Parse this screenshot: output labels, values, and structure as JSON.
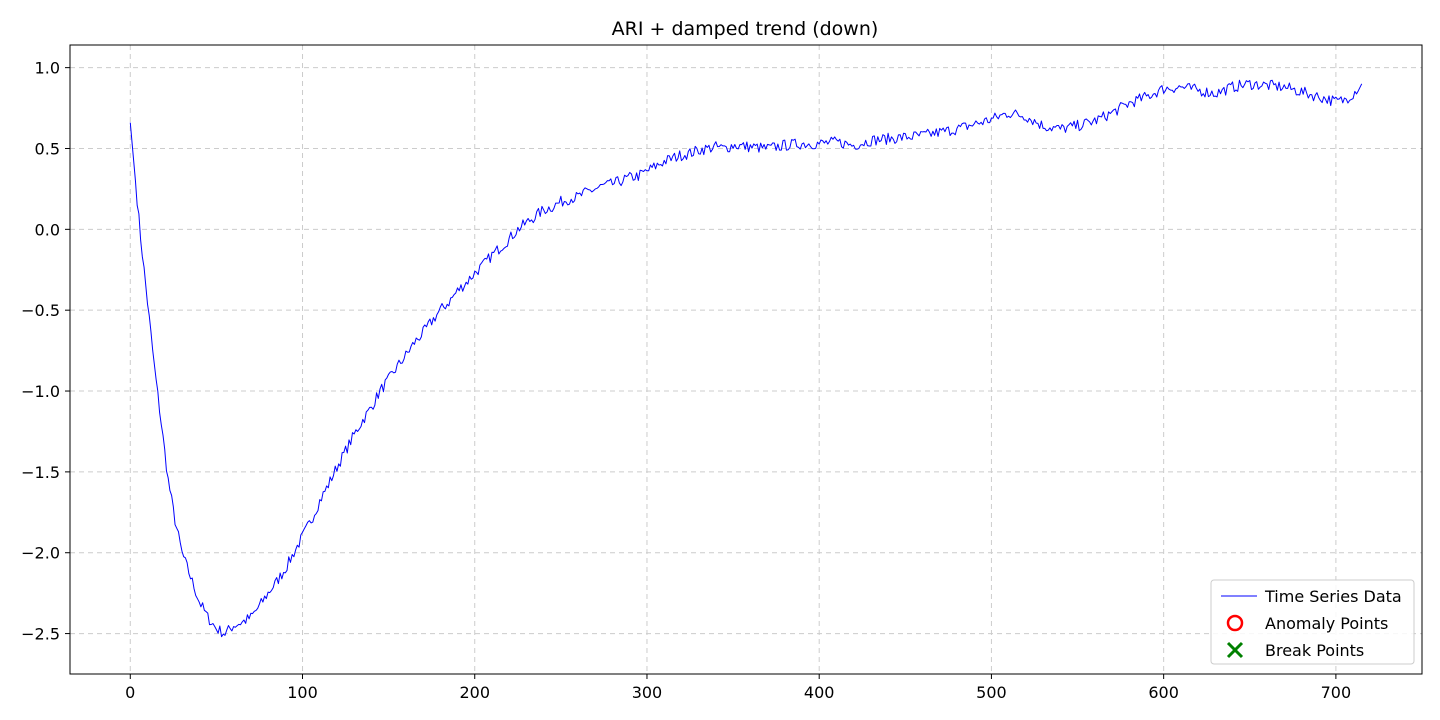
{
  "chart_data": {
    "type": "line",
    "title": "ARI + damped trend (down)",
    "xlabel": "",
    "ylabel": "",
    "xlim": [
      -35,
      750
    ],
    "ylim": [
      -2.75,
      1.14
    ],
    "x_ticks": [
      0,
      100,
      200,
      300,
      400,
      500,
      600,
      700
    ],
    "y_ticks": [
      1.0,
      0.5,
      0.0,
      -0.5,
      -1.0,
      -1.5,
      -2.0,
      -2.5
    ],
    "x_tick_labels": [
      "0",
      "100",
      "200",
      "300",
      "400",
      "500",
      "600",
      "700"
    ],
    "y_tick_labels": [
      "1.0",
      "0.5",
      "0.0",
      "−0.5",
      "−1.0",
      "−1.5",
      "−2.0",
      "−2.5"
    ],
    "grid": true,
    "legend_position": "bottom-right",
    "series": [
      {
        "name": "Time Series Data",
        "color": "#0000ff",
        "style": "line",
        "x": [
          0,
          3,
          6,
          10,
          14,
          18,
          22,
          26,
          30,
          35,
          40,
          45,
          50,
          55,
          60,
          65,
          70,
          75,
          80,
          85,
          90,
          95,
          100,
          105,
          110,
          115,
          120,
          125,
          130,
          135,
          140,
          145,
          150,
          155,
          160,
          165,
          170,
          175,
          180,
          185,
          190,
          195,
          200,
          205,
          210,
          215,
          220,
          225,
          230,
          235,
          240,
          245,
          250,
          255,
          260,
          265,
          270,
          275,
          280,
          285,
          290,
          295,
          300,
          305,
          310,
          315,
          320,
          325,
          330,
          335,
          340,
          345,
          350,
          360,
          370,
          380,
          390,
          400,
          410,
          420,
          430,
          440,
          450,
          460,
          470,
          480,
          490,
          500,
          510,
          520,
          530,
          540,
          550,
          560,
          570,
          580,
          590,
          600,
          610,
          620,
          630,
          640,
          650,
          660,
          670,
          680,
          690,
          700,
          705,
          710,
          715
        ],
        "y": [
          0.66,
          0.3,
          -0.05,
          -0.45,
          -0.85,
          -1.2,
          -1.55,
          -1.8,
          -2.0,
          -2.15,
          -2.3,
          -2.4,
          -2.47,
          -2.5,
          -2.45,
          -2.43,
          -2.4,
          -2.33,
          -2.25,
          -2.18,
          -2.1,
          -2.0,
          -1.9,
          -1.8,
          -1.68,
          -1.58,
          -1.47,
          -1.37,
          -1.27,
          -1.18,
          -1.1,
          -1.0,
          -0.93,
          -0.85,
          -0.78,
          -0.7,
          -0.64,
          -0.57,
          -0.5,
          -0.45,
          -0.38,
          -0.33,
          -0.27,
          -0.22,
          -0.16,
          -0.11,
          -0.06,
          0.0,
          0.04,
          0.08,
          0.12,
          0.14,
          0.17,
          0.19,
          0.2,
          0.23,
          0.25,
          0.27,
          0.28,
          0.3,
          0.32,
          0.33,
          0.36,
          0.39,
          0.42,
          0.44,
          0.46,
          0.47,
          0.49,
          0.5,
          0.51,
          0.5,
          0.52,
          0.51,
          0.5,
          0.52,
          0.53,
          0.53,
          0.54,
          0.52,
          0.55,
          0.56,
          0.57,
          0.58,
          0.6,
          0.62,
          0.65,
          0.68,
          0.72,
          0.7,
          0.64,
          0.62,
          0.64,
          0.67,
          0.72,
          0.78,
          0.82,
          0.87,
          0.88,
          0.86,
          0.84,
          0.88,
          0.9,
          0.89,
          0.88,
          0.85,
          0.82,
          0.79,
          0.8,
          0.84,
          0.9
        ]
      },
      {
        "name": "Anomaly Points",
        "color": "#ff0000",
        "style": "hollow-circle",
        "x": [],
        "y": []
      },
      {
        "name": "Break Points",
        "color": "#008000",
        "style": "x-marker",
        "x": [],
        "y": []
      }
    ]
  }
}
